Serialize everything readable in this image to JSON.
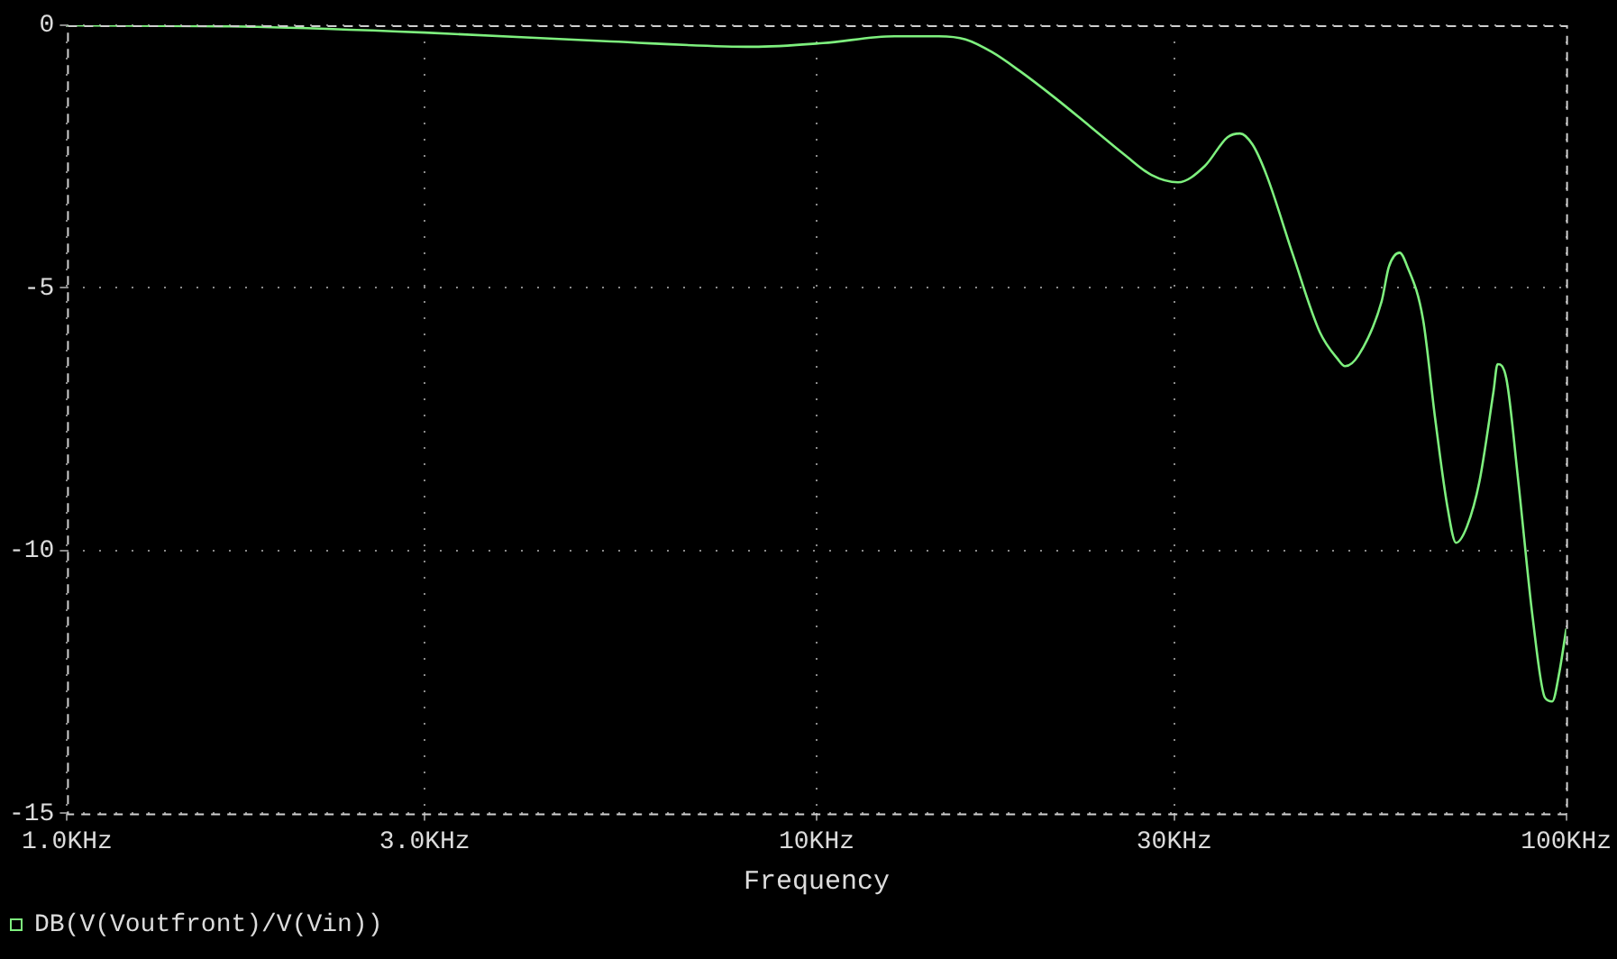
{
  "chart_data": {
    "type": "line",
    "xlabel": "Frequency",
    "log": "x",
    "grid": true,
    "legend": "bottom left",
    "marker": "none",
    "line_style": "solid",
    "xlim": [
      1,
      100
    ],
    "xticks": [
      {
        "value": 1,
        "label": "1.0KHz"
      },
      {
        "value": 3,
        "label": "3.0KHz"
      },
      {
        "value": 10,
        "label": "10KHz"
      },
      {
        "value": 30,
        "label": "30KHz"
      },
      {
        "value": 100,
        "label": "100KHz"
      }
    ],
    "ylim": [
      -15,
      0
    ],
    "yticks": [
      -15,
      -10,
      -5,
      0
    ],
    "x": [
      1,
      1.79,
      3,
      5.32,
      8.22,
      10.2,
      12.7,
      14.55,
      15.8,
      17.13,
      18.62,
      20.75,
      23.14,
      25.78,
      27.97,
      30.35,
      32.95,
      35.34,
      36.72,
      38.15,
      39.83,
      43.25,
      46.92,
      49.55,
      50.7,
      52.85,
      56.74,
      58,
      59.96,
      61.3,
      64.43,
      66.86,
      69.5,
      71.3,
      73.74,
      76.6,
      80,
      81,
      83.2,
      86.34,
      90.2,
      93.7,
      95.8,
      98,
      100
    ],
    "series": [
      {
        "name": "DB(V(Voutfront)/V(Vin))",
        "color": "#7ef07e",
        "values": [
          0,
          -0.03,
          -0.14,
          -0.31,
          -0.41,
          -0.34,
          -0.21,
          -0.21,
          -0.27,
          -0.51,
          -0.86,
          -1.37,
          -1.92,
          -2.47,
          -2.85,
          -2.99,
          -2.68,
          -2.13,
          -2.06,
          -2.27,
          -2.85,
          -4.39,
          -5.84,
          -6.35,
          -6.49,
          -6.28,
          -5.25,
          -4.6,
          -4.33,
          -4.57,
          -5.6,
          -7.48,
          -9.2,
          -9.85,
          -9.54,
          -8.69,
          -6.97,
          -6.45,
          -6.72,
          -8.69,
          -11.26,
          -12.8,
          -12.87,
          -12.29,
          -11.5
        ]
      }
    ]
  }
}
